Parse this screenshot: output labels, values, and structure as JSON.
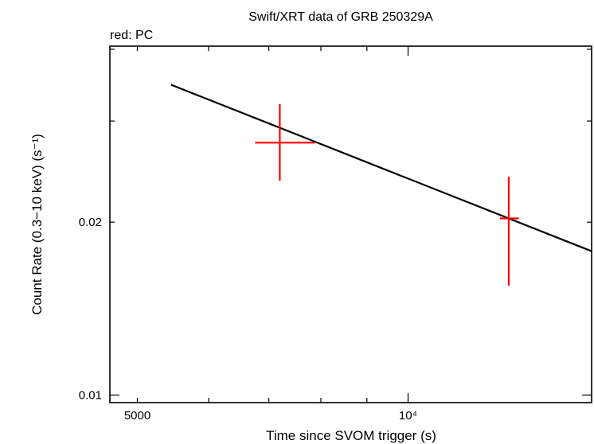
{
  "chart_data": {
    "type": "scatter",
    "title": "Swift/XRT data of GRB 250329A",
    "subtitle": "red: PC",
    "xlabel": "Time since SVOM trigger (s)",
    "ylabel": "Count Rate (0.3−10 keV) (s⁻¹)",
    "xscale": "log",
    "yscale": "log",
    "xlim": [
      4660,
      16000
    ],
    "ylim": [
      0.0097,
      0.0405
    ],
    "x_tick_labels": [
      {
        "value": 5000,
        "text": "5000"
      },
      {
        "value": 10000,
        "text": "10⁴"
      }
    ],
    "y_tick_labels": [
      {
        "value": 0.01,
        "text": "0.01"
      },
      {
        "value": 0.02,
        "text": "0.02"
      }
    ],
    "series": [
      {
        "name": "PC",
        "color": "#ff0000",
        "points": [
          {
            "x": 7200,
            "xerr_low": 6760,
            "xerr_high": 7880,
            "y": 0.0275,
            "yerr_low": 0.0236,
            "yerr_high": 0.0321
          },
          {
            "x": 12940,
            "xerr_low": 12650,
            "xerr_high": 13280,
            "y": 0.0203,
            "yerr_low": 0.0155,
            "yerr_high": 0.024
          }
        ]
      }
    ],
    "model": {
      "type": "power-law",
      "color": "#000000",
      "x": [
        5450,
        16000
      ],
      "y": [
        0.0347,
        0.0178
      ]
    }
  }
}
